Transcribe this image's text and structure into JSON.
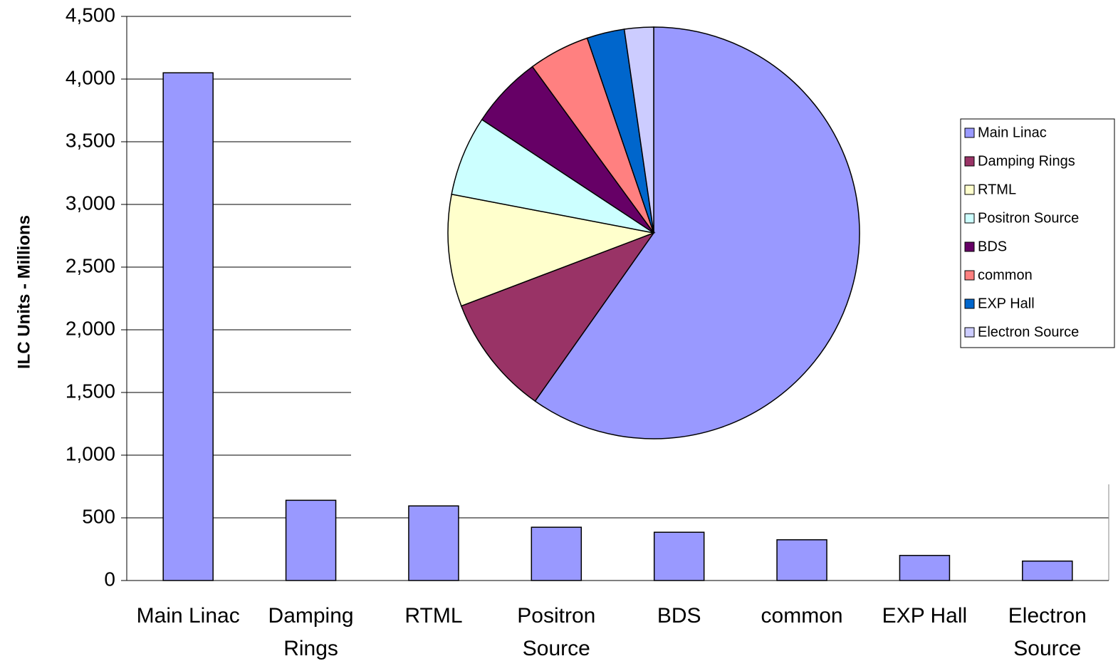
{
  "chart_data": [
    {
      "type": "bar",
      "y_label": "ILC Units - Millions",
      "categories": [
        "Main Linac",
        "Damping Rings",
        "RTML",
        "Positron Source",
        "BDS",
        "common",
        "EXP Hall",
        "Electron Source"
      ],
      "values": [
        4050,
        640,
        595,
        425,
        385,
        325,
        200,
        155
      ],
      "color": "#9999ff",
      "ylim": [
        0,
        4500
      ],
      "yticks": [
        0,
        500,
        {
          "value": 1000,
          "label": "1,000"
        },
        {
          "value": 1500,
          "label": "1,500"
        },
        {
          "value": 2000,
          "label": "2,000"
        },
        {
          "value": 2500,
          "label": "2,500"
        },
        {
          "value": 3000,
          "label": "3,000"
        },
        {
          "value": 3500,
          "label": "3,500"
        },
        {
          "value": 4000,
          "label": "4,000"
        },
        {
          "value": 4500,
          "label": "4,500"
        }
      ],
      "grid": true
    },
    {
      "type": "pie",
      "categories": [
        "Main Linac",
        "Damping Rings",
        "RTML",
        "Positron Source",
        "BDS",
        "common",
        "EXP Hall",
        "Electron Source"
      ],
      "values": [
        4050,
        640,
        595,
        425,
        385,
        325,
        200,
        155
      ],
      "colors": [
        "#9999ff",
        "#993366",
        "#ffffcc",
        "#ccffff",
        "#660066",
        "#ff8080",
        "#0066cc",
        "#ccccff"
      ],
      "legend": "right"
    }
  ]
}
